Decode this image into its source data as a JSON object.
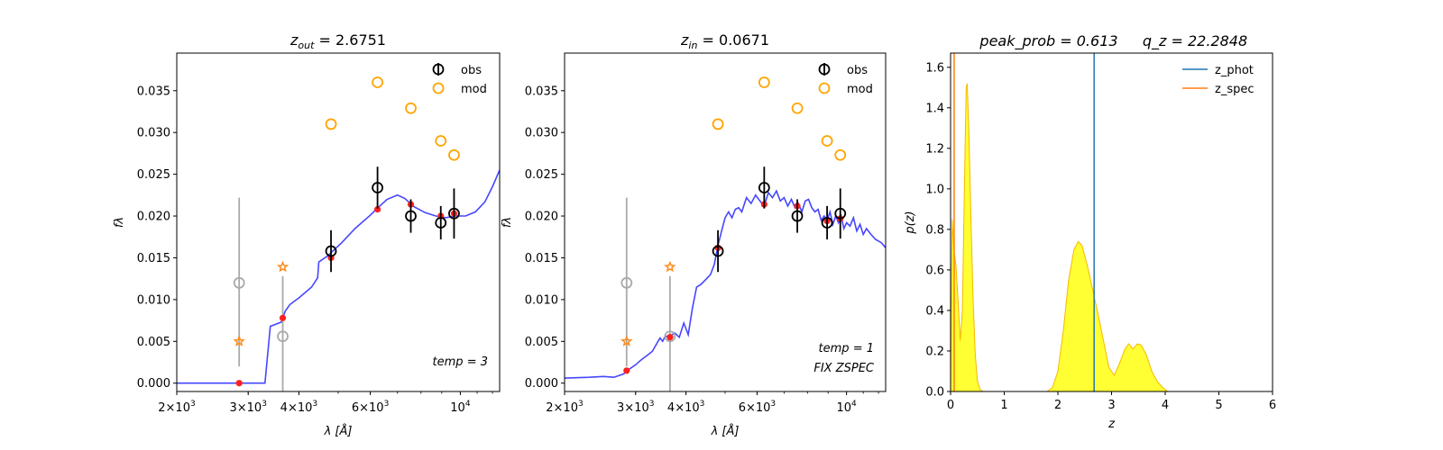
{
  "chart_data": [
    {
      "type": "scatter",
      "title": {
        "lhs": "z",
        "sub": "out",
        "rhs": "= 2.6751"
      },
      "xlabel": "λ [Å]",
      "ylabel": "fλ",
      "xscale": "log",
      "xlim": [
        2000,
        12500
      ],
      "ylim": [
        -0.001,
        0.0395
      ],
      "xticks": [
        {
          "v": 2000,
          "m": "2",
          "e": "3"
        },
        {
          "v": 3000,
          "m": "3",
          "e": "3"
        },
        {
          "v": 4000,
          "m": "4",
          "e": "3"
        },
        {
          "v": 6000,
          "m": "6",
          "e": "3"
        },
        {
          "v": 10000,
          "m": "10",
          "e": "4",
          "pow10": true
        }
      ],
      "yticks": [
        "0.000",
        "0.005",
        "0.010",
        "0.015",
        "0.020",
        "0.025",
        "0.030",
        "0.035"
      ],
      "legend": {
        "position": "top-right",
        "entries": [
          "obs",
          "mod"
        ]
      },
      "annotation": [
        "temp = 3"
      ],
      "series": {
        "obs": [
          {
            "x": 4800,
            "y": 0.0158,
            "err": 0.0025
          },
          {
            "x": 6250,
            "y": 0.0234,
            "err": 0.0025
          },
          {
            "x": 7550,
            "y": 0.02,
            "err": 0.002
          },
          {
            "x": 8950,
            "y": 0.0192,
            "err": 0.002
          },
          {
            "x": 9650,
            "y": 0.0203,
            "err": 0.003
          }
        ],
        "obs_low": [
          {
            "x": 2850,
            "y": 0.012,
            "lo": 0.002,
            "hi": 0.0222
          },
          {
            "x": 3650,
            "y": 0.0056,
            "lo": -0.001,
            "hi": 0.0128
          }
        ],
        "mod": [
          {
            "x": 4800,
            "y": 0.031
          },
          {
            "x": 6250,
            "y": 0.036
          },
          {
            "x": 7550,
            "y": 0.0329
          },
          {
            "x": 8950,
            "y": 0.029
          },
          {
            "x": 9650,
            "y": 0.0273
          }
        ],
        "mod_low": [
          {
            "x": 2850,
            "y": 0.005
          },
          {
            "x": 3650,
            "y": 0.0139
          }
        ],
        "template_points": [
          {
            "x": 2850,
            "y": 0.0
          },
          {
            "x": 3650,
            "y": 0.0078
          },
          {
            "x": 4800,
            "y": 0.015
          },
          {
            "x": 6250,
            "y": 0.0208
          },
          {
            "x": 7550,
            "y": 0.0214
          },
          {
            "x": 8950,
            "y": 0.02
          },
          {
            "x": 9650,
            "y": 0.0203
          }
        ],
        "template": [
          [
            2000,
            0
          ],
          [
            3300,
            0
          ],
          [
            3400,
            0.0068
          ],
          [
            3620,
            0.0073
          ],
          [
            3700,
            0.0086
          ],
          [
            3800,
            0.0094
          ],
          [
            4000,
            0.0102
          ],
          [
            4300,
            0.0115
          ],
          [
            4450,
            0.0126
          ],
          [
            4480,
            0.0145
          ],
          [
            4700,
            0.0152
          ],
          [
            5100,
            0.0168
          ],
          [
            5500,
            0.0185
          ],
          [
            6000,
            0.0201
          ],
          [
            6300,
            0.0211
          ],
          [
            6600,
            0.022
          ],
          [
            7000,
            0.0225
          ],
          [
            7300,
            0.0221
          ],
          [
            7700,
            0.0211
          ],
          [
            8200,
            0.0204
          ],
          [
            8700,
            0.02
          ],
          [
            9200,
            0.0198
          ],
          [
            9700,
            0.02
          ],
          [
            10300,
            0.02
          ],
          [
            10900,
            0.0205
          ],
          [
            11500,
            0.0217
          ],
          [
            12000,
            0.0235
          ],
          [
            12500,
            0.0255
          ]
        ]
      }
    },
    {
      "type": "scatter",
      "title": {
        "lhs": "z",
        "sub": "in",
        "rhs": "= 0.0671"
      },
      "xlabel": "λ [Å]",
      "ylabel": "fλ",
      "xscale": "log",
      "xlim": [
        2000,
        12500
      ],
      "ylim": [
        -0.001,
        0.0395
      ],
      "xticks": [
        {
          "v": 2000,
          "m": "2",
          "e": "3"
        },
        {
          "v": 3000,
          "m": "3",
          "e": "3"
        },
        {
          "v": 4000,
          "m": "4",
          "e": "3"
        },
        {
          "v": 6000,
          "m": "6",
          "e": "3"
        },
        {
          "v": 10000,
          "m": "10",
          "e": "4",
          "pow10": true
        }
      ],
      "yticks": [
        "0.000",
        "0.005",
        "0.010",
        "0.015",
        "0.020",
        "0.025",
        "0.030",
        "0.035"
      ],
      "legend": {
        "position": "top-right",
        "entries": [
          "obs",
          "mod"
        ]
      },
      "annotation": [
        "temp = 1",
        "FIX ZSPEC"
      ],
      "series": {
        "obs": [
          {
            "x": 4800,
            "y": 0.0158,
            "err": 0.0025
          },
          {
            "x": 6250,
            "y": 0.0234,
            "err": 0.0025
          },
          {
            "x": 7550,
            "y": 0.02,
            "err": 0.002
          },
          {
            "x": 8950,
            "y": 0.0192,
            "err": 0.002
          },
          {
            "x": 9650,
            "y": 0.0203,
            "err": 0.003
          }
        ],
        "obs_low": [
          {
            "x": 2850,
            "y": 0.012,
            "lo": 0.002,
            "hi": 0.0222
          },
          {
            "x": 3650,
            "y": 0.0056,
            "lo": -0.001,
            "hi": 0.0128
          }
        ],
        "mod": [
          {
            "x": 4800,
            "y": 0.031
          },
          {
            "x": 6250,
            "y": 0.036
          },
          {
            "x": 7550,
            "y": 0.0329
          },
          {
            "x": 8950,
            "y": 0.029
          },
          {
            "x": 9650,
            "y": 0.0273
          }
        ],
        "mod_low": [
          {
            "x": 2850,
            "y": 0.005
          },
          {
            "x": 3650,
            "y": 0.0139
          }
        ],
        "template_points": [
          {
            "x": 2850,
            "y": 0.0015
          },
          {
            "x": 3650,
            "y": 0.0055
          },
          {
            "x": 4800,
            "y": 0.0162
          },
          {
            "x": 6250,
            "y": 0.0214
          },
          {
            "x": 7550,
            "y": 0.0212
          },
          {
            "x": 8950,
            "y": 0.0194
          },
          {
            "x": 9650,
            "y": 0.0197
          }
        ],
        "template": [
          [
            2000,
            0.0006
          ],
          [
            2300,
            0.0007
          ],
          [
            2500,
            0.0008
          ],
          [
            2650,
            0.0007
          ],
          [
            2800,
            0.0011
          ],
          [
            2900,
            0.0017
          ],
          [
            3000,
            0.0022
          ],
          [
            3100,
            0.0028
          ],
          [
            3200,
            0.0033
          ],
          [
            3300,
            0.0038
          ],
          [
            3400,
            0.0049
          ],
          [
            3450,
            0.0054
          ],
          [
            3500,
            0.005
          ],
          [
            3550,
            0.0056
          ],
          [
            3650,
            0.0056
          ],
          [
            3750,
            0.006
          ],
          [
            3850,
            0.0055
          ],
          [
            3950,
            0.0072
          ],
          [
            4050,
            0.0058
          ],
          [
            4150,
            0.009
          ],
          [
            4250,
            0.0115
          ],
          [
            4350,
            0.0118
          ],
          [
            4500,
            0.0125
          ],
          [
            4600,
            0.013
          ],
          [
            4700,
            0.0142
          ],
          [
            4800,
            0.0165
          ],
          [
            4900,
            0.0182
          ],
          [
            5000,
            0.0198
          ],
          [
            5100,
            0.0205
          ],
          [
            5200,
            0.0198
          ],
          [
            5300,
            0.0208
          ],
          [
            5400,
            0.021
          ],
          [
            5500,
            0.0205
          ],
          [
            5650,
            0.0222
          ],
          [
            5800,
            0.0215
          ],
          [
            5950,
            0.0225
          ],
          [
            6100,
            0.0218
          ],
          [
            6250,
            0.0212
          ],
          [
            6400,
            0.0228
          ],
          [
            6550,
            0.0222
          ],
          [
            6700,
            0.023
          ],
          [
            6850,
            0.0218
          ],
          [
            7000,
            0.0222
          ],
          [
            7150,
            0.0212
          ],
          [
            7300,
            0.022
          ],
          [
            7450,
            0.021
          ],
          [
            7600,
            0.0215
          ],
          [
            7750,
            0.0205
          ],
          [
            7900,
            0.0218
          ],
          [
            8050,
            0.022
          ],
          [
            8200,
            0.021
          ],
          [
            8350,
            0.0205
          ],
          [
            8500,
            0.0208
          ],
          [
            8650,
            0.0195
          ],
          [
            8800,
            0.02
          ],
          [
            8950,
            0.0195
          ],
          [
            9100,
            0.0205
          ],
          [
            9250,
            0.019
          ],
          [
            9400,
            0.02
          ],
          [
            9550,
            0.0192
          ],
          [
            9700,
            0.02
          ],
          [
            9850,
            0.0185
          ],
          [
            10000,
            0.0192
          ],
          [
            10200,
            0.0188
          ],
          [
            10400,
            0.0198
          ],
          [
            10600,
            0.0182
          ],
          [
            10800,
            0.019
          ],
          [
            11000,
            0.0178
          ],
          [
            11200,
            0.0185
          ],
          [
            11500,
            0.0178
          ],
          [
            11800,
            0.0172
          ],
          [
            12200,
            0.0168
          ],
          [
            12500,
            0.0162
          ]
        ]
      }
    },
    {
      "type": "area",
      "title_parts": [
        "peak_prob = 0.613",
        "q_z = 22.2848"
      ],
      "xlabel": "z",
      "ylabel": "p(z)",
      "xlim": [
        0,
        6
      ],
      "ylim": [
        0,
        1.67
      ],
      "xticks": [
        "0",
        "1",
        "2",
        "3",
        "4",
        "5",
        "6"
      ],
      "yticks": [
        "0.0",
        "0.2",
        "0.4",
        "0.6",
        "0.8",
        "1.0",
        "1.2",
        "1.4",
        "1.6"
      ],
      "legend": {
        "position": "top-right",
        "entries": [
          "z_phot",
          "z_spec"
        ]
      },
      "z_phot": 2.6751,
      "z_spec": 0.0671,
      "colors": {
        "z_phot": "#1f77b4",
        "z_spec": "#ff7f0e",
        "fill": "#ffff33",
        "edge": "#f5b800"
      },
      "pz": [
        [
          0.0,
          0.0
        ],
        [
          0.03,
          0.85
        ],
        [
          0.06,
          0.7
        ],
        [
          0.1,
          0.62
        ],
        [
          0.14,
          0.45
        ],
        [
          0.18,
          0.25
        ],
        [
          0.22,
          0.4
        ],
        [
          0.26,
          1.05
        ],
        [
          0.29,
          1.5
        ],
        [
          0.31,
          1.52
        ],
        [
          0.34,
          1.3
        ],
        [
          0.38,
          0.85
        ],
        [
          0.42,
          0.45
        ],
        [
          0.46,
          0.18
        ],
        [
          0.5,
          0.05
        ],
        [
          0.55,
          0.01
        ],
        [
          0.6,
          0.0
        ],
        [
          1.8,
          0.0
        ],
        [
          1.9,
          0.02
        ],
        [
          2.0,
          0.1
        ],
        [
          2.1,
          0.3
        ],
        [
          2.2,
          0.55
        ],
        [
          2.3,
          0.7
        ],
        [
          2.38,
          0.74
        ],
        [
          2.45,
          0.72
        ],
        [
          2.55,
          0.62
        ],
        [
          2.65,
          0.5
        ],
        [
          2.75,
          0.38
        ],
        [
          2.85,
          0.25
        ],
        [
          2.95,
          0.12
        ],
        [
          3.05,
          0.08
        ],
        [
          3.15,
          0.14
        ],
        [
          3.25,
          0.21
        ],
        [
          3.32,
          0.235
        ],
        [
          3.4,
          0.21
        ],
        [
          3.48,
          0.235
        ],
        [
          3.55,
          0.23
        ],
        [
          3.65,
          0.18
        ],
        [
          3.75,
          0.1
        ],
        [
          3.85,
          0.05
        ],
        [
          3.95,
          0.02
        ],
        [
          4.05,
          0.0
        ],
        [
          5.0,
          0.0
        ]
      ]
    }
  ]
}
